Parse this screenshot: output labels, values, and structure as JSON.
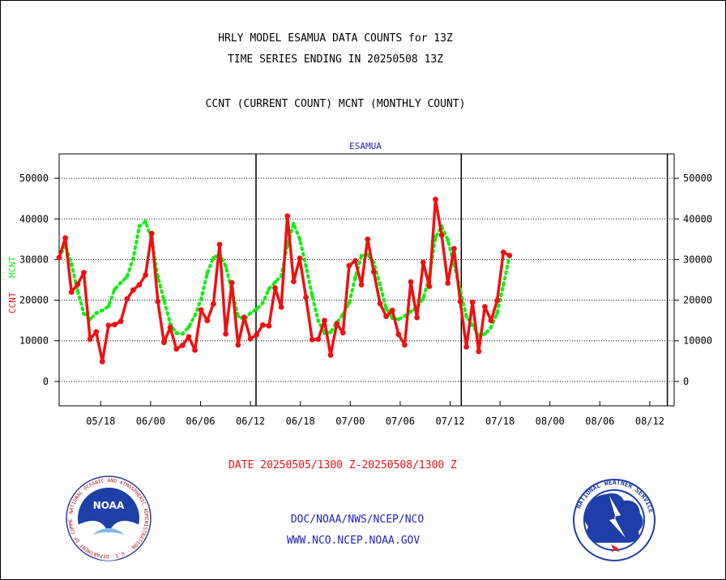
{
  "title_line1": "HRLY MODEL ESAMUA DATA COUNTS for 13Z",
  "title_line2": "TIME SERIES ENDING IN 20250508 13Z",
  "subtitle": "CCNT (CURRENT COUNT) MCNT (MONTHLY COUNT)",
  "plot_label": "ESAMUA",
  "ylabel_ccnt": "CCNT",
  "ylabel_mcnt": "MCNT",
  "date_range": "DATE 20250505/1300 Z-20250508/1300 Z",
  "credit_line1": "DOC/NOAA/NWS/NCEP/NCO",
  "credit_line2": "WWW.NCO.NCEP.NOAA.GOV",
  "logo_left_text": "NOAA",
  "logo_left_ring": "NATIONAL OCEANIC AND ATMOSPHERIC ADMINISTRATION · U.S. DEPARTMENT OF COMMERCE",
  "logo_right_ring": "NATIONAL WEATHER SERVICE",
  "colors": {
    "ccnt": "#ee1111",
    "mcnt": "#11ee11",
    "text_blue": "#2222bb",
    "text_red": "#ee1111",
    "grid": "#000000"
  },
  "chart_data": {
    "type": "line",
    "xlim": [
      0,
      3.08
    ],
    "ylim": [
      -6000,
      56000
    ],
    "y_ticks": [
      0,
      10000,
      20000,
      30000,
      40000,
      50000
    ],
    "y_tick_labels": [
      "0",
      "10000",
      "20000",
      "30000",
      "40000",
      "50000"
    ],
    "x_tick_positions": [
      0.208,
      0.458,
      0.708,
      0.958,
      1.208,
      1.458,
      1.708,
      1.958,
      2.208,
      2.458,
      2.708,
      2.958
    ],
    "x_tick_labels": [
      "05/18",
      "06/00",
      "06/06",
      "06/12",
      "06/18",
      "07/00",
      "07/06",
      "07/12",
      "07/18",
      "08/00",
      "08/06",
      "08/12"
    ],
    "day_boundaries": [
      0.986,
      2.014,
      3.046
    ],
    "x_step": 0.0309,
    "series": [
      {
        "name": "CCNT",
        "values": [
          30500,
          35300,
          22000,
          23900,
          26800,
          10400,
          12200,
          4900,
          13800,
          14000,
          14800,
          20300,
          22500,
          23800,
          26200,
          36400,
          19700,
          9600,
          13300,
          8000,
          8900,
          11000,
          7700,
          17600,
          15000,
          19100,
          33700,
          11700,
          24300,
          9000,
          15800,
          10500,
          11500,
          13900,
          13700,
          23000,
          18300,
          40700,
          24600,
          30300,
          20700,
          10300,
          10400,
          15000,
          6500,
          14200,
          12000,
          28500,
          29700,
          23800,
          35000,
          27000,
          19200,
          16000,
          17500,
          11600,
          9000,
          24500,
          15700,
          29300,
          23400,
          44800,
          36000,
          24200,
          32700,
          19700,
          8500,
          19500,
          7400,
          18400,
          15000,
          19900,
          31800,
          31000
        ]
      },
      {
        "name": "MCNT",
        "values": [
          30500,
          33600,
          28900,
          22300,
          16700,
          15300,
          16800,
          17500,
          18500,
          22700,
          24300,
          25800,
          30300,
          38200,
          39400,
          34900,
          25800,
          20000,
          14200,
          11900,
          11700,
          13400,
          16200,
          20200,
          26700,
          30400,
          31400,
          28400,
          22200,
          16100,
          15200,
          16800,
          17800,
          19300,
          22800,
          24400,
          26000,
          33600,
          38800,
          35000,
          28400,
          21200,
          14900,
          11900,
          12100,
          14500,
          16500,
          19300,
          25600,
          30900,
          31200,
          29300,
          23900,
          18000,
          15600,
          15300,
          16100,
          17200,
          18200,
          20400,
          25800,
          35500,
          38200,
          34800,
          28800,
          22600,
          16000,
          13800,
          11300,
          11700,
          13300,
          16800,
          23800,
          31000
        ]
      }
    ]
  }
}
